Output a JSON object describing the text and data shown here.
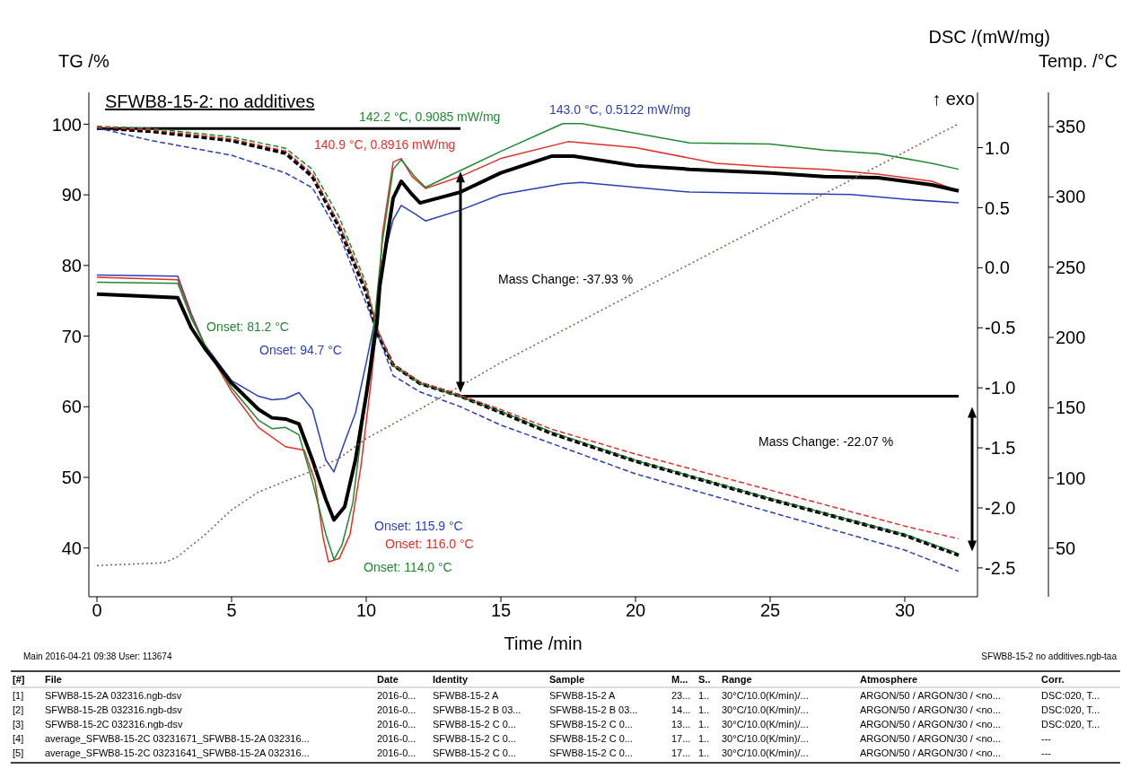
{
  "chart_data": {
    "type": "line",
    "title": "SFWB8-15-2: no additives",
    "xlabel": "Time /min",
    "ylabel": "TG /%",
    "y2label": "DSC /(mW/mg)",
    "y3label": "Temp. /°C",
    "xlim": [
      -0.3,
      32.7
    ],
    "xticks": [
      0,
      5,
      10,
      15,
      20,
      25,
      30
    ],
    "ylim": [
      33.1,
      104.5
    ],
    "yticks": [
      40,
      50,
      60,
      70,
      80,
      90,
      100
    ],
    "y2lim": [
      -2.74,
      1.46
    ],
    "y2ticks": [
      {
        "value": -2.5,
        "label": "-2.5"
      },
      {
        "value": -2,
        "label": "-2.0"
      },
      {
        "value": -1.5,
        "label": "-1.5"
      },
      {
        "value": -1,
        "label": "-1.0"
      },
      {
        "value": -0.5,
        "label": "-0.5"
      },
      {
        "value": 0,
        "label": "0.0"
      },
      {
        "value": 0.5,
        "label": "0.5"
      },
      {
        "value": 1,
        "label": "1.0"
      }
    ],
    "y3lim": [
      15.5,
      374.3
    ],
    "y3ticks": [
      50,
      100,
      150,
      200,
      250,
      300,
      350
    ],
    "marker": "none",
    "series": [
      {
        "axis": "y",
        "color": "#000000",
        "line_style": "dashed",
        "x": [
          0,
          2,
          5,
          7,
          8,
          9,
          10,
          10.4,
          11,
          12,
          13.5,
          15,
          16.9,
          20,
          25,
          30,
          32
        ],
        "values": [
          99.5,
          99.0,
          97.7,
          95.9,
          92.6,
          85.4,
          76.2,
          70.5,
          65.9,
          63.3,
          61.5,
          59.2,
          56.2,
          52.3,
          46.9,
          41.8,
          39.0
        ]
      },
      {
        "axis": "y",
        "color": "#2b3fb5",
        "line_style": "dashed",
        "x": [
          0,
          2,
          5,
          7,
          8,
          9,
          10,
          11,
          12,
          13.5,
          15,
          20,
          25,
          30,
          32
        ],
        "values": [
          99.5,
          97.7,
          95.6,
          93.1,
          91.0,
          84.4,
          74.6,
          64.4,
          62.1,
          60.0,
          57.4,
          50.5,
          45.1,
          39.7,
          36.7
        ]
      },
      {
        "axis": "y",
        "color": "#1e8a2e",
        "line_style": "dashed",
        "x": [
          0,
          2,
          5,
          7,
          8,
          9,
          10,
          10.4,
          11,
          12,
          13.5,
          15,
          16.9,
          20,
          25,
          30,
          32
        ],
        "values": [
          99.7,
          99.4,
          98.2,
          96.6,
          93.6,
          86.8,
          77.4,
          71.2,
          65.8,
          63.3,
          61.4,
          59.3,
          56.4,
          52.4,
          47.0,
          41.9,
          39.2
        ]
      },
      {
        "axis": "y",
        "color": "#e0302a",
        "line_style": "dashed",
        "x": [
          0,
          2,
          5,
          7,
          8,
          9,
          10,
          10.4,
          11,
          12,
          13.5,
          15,
          16.9,
          20,
          25,
          30,
          32
        ],
        "values": [
          99.6,
          99.2,
          97.9,
          96.2,
          93.0,
          85.8,
          76.8,
          71.0,
          66.0,
          63.5,
          61.6,
          59.6,
          56.8,
          53.3,
          48.2,
          43.1,
          41.3
        ]
      },
      {
        "axis": "y2",
        "color": "#2b3fb5",
        "line_style": "solid",
        "x": [
          0,
          3,
          3.5,
          4,
          5,
          6,
          6.5,
          7,
          7.5,
          8,
          8.5,
          8.8,
          9.2,
          9.6,
          10,
          10.3,
          10.6,
          11,
          11.3,
          11.8,
          12.2,
          13.5,
          15,
          17.3,
          18,
          20,
          22,
          25,
          28,
          30,
          32
        ],
        "values": [
          -0.06,
          -0.07,
          -0.38,
          -0.64,
          -0.94,
          -1.07,
          -1.1,
          -1.09,
          -1.04,
          -1.18,
          -1.6,
          -1.7,
          -1.45,
          -1.21,
          -0.79,
          -0.46,
          0.04,
          0.4,
          0.52,
          0.45,
          0.39,
          0.48,
          0.61,
          0.7,
          0.71,
          0.67,
          0.63,
          0.62,
          0.61,
          0.57,
          0.54
        ]
      },
      {
        "axis": "y2",
        "color": "#e0302a",
        "line_style": "solid",
        "x": [
          0,
          3,
          3.5,
          4,
          5,
          6,
          7,
          7.7,
          8.1,
          8.4,
          8.6,
          9.0,
          9.4,
          9.8,
          10.2,
          10.4,
          10.6,
          11,
          11.3,
          11.7,
          12.2,
          13.5,
          15,
          17.5,
          20,
          23,
          25,
          27,
          29,
          31,
          32
        ],
        "values": [
          -0.08,
          -0.1,
          -0.4,
          -0.64,
          -1.03,
          -1.33,
          -1.49,
          -1.52,
          -1.78,
          -2.25,
          -2.45,
          -2.42,
          -2.22,
          -1.66,
          -0.91,
          -0.46,
          0.28,
          0.88,
          0.91,
          0.76,
          0.66,
          0.76,
          0.91,
          1.05,
          1.0,
          0.87,
          0.84,
          0.82,
          0.78,
          0.72,
          0.64
        ]
      },
      {
        "axis": "y2",
        "color": "#1e8a2e",
        "line_style": "solid",
        "x": [
          0,
          3,
          3.5,
          4,
          5,
          6,
          6.5,
          7,
          7.5,
          8,
          8.5,
          8.8,
          9.1,
          9.5,
          10,
          10.3,
          10.6,
          11,
          11.3,
          11.8,
          12.2,
          13.5,
          15,
          17.3,
          18,
          20,
          22,
          25,
          27,
          29,
          31,
          32
        ],
        "values": [
          -0.12,
          -0.13,
          -0.42,
          -0.64,
          -1.0,
          -1.27,
          -1.34,
          -1.33,
          -1.39,
          -1.78,
          -2.22,
          -2.43,
          -2.31,
          -1.96,
          -1.06,
          -0.46,
          0.22,
          0.82,
          0.9,
          0.76,
          0.67,
          0.81,
          0.97,
          1.2,
          1.2,
          1.12,
          1.04,
          1.03,
          0.98,
          0.95,
          0.87,
          0.82
        ]
      },
      {
        "axis": "y2",
        "color": "#000000",
        "line_style": "solid",
        "x": [
          0,
          3,
          3.5,
          4,
          5,
          6,
          6.5,
          7,
          7.5,
          8,
          8.5,
          8.8,
          9.2,
          9.6,
          10,
          10.4,
          10.5,
          11,
          11.3,
          11.7,
          12,
          13,
          13.5,
          15,
          16.9,
          17.7,
          20,
          22,
          25,
          27,
          29,
          31,
          32
        ],
        "values": [
          -0.22,
          -0.25,
          -0.5,
          -0.67,
          -0.96,
          -1.18,
          -1.25,
          -1.26,
          -1.3,
          -1.6,
          -1.93,
          -2.1,
          -1.99,
          -1.6,
          -1.06,
          -0.46,
          -0.16,
          0.58,
          0.72,
          0.61,
          0.54,
          0.6,
          0.63,
          0.79,
          0.93,
          0.93,
          0.85,
          0.82,
          0.79,
          0.76,
          0.75,
          0.69,
          0.64
        ]
      },
      {
        "axis": "y3",
        "color": "#8b5a3c",
        "line_style": "dotted",
        "x": [
          0,
          2.5,
          3,
          4,
          5,
          6,
          7,
          8,
          9,
          10,
          12,
          15,
          20,
          25,
          30,
          32
        ],
        "values": [
          37.7,
          39.7,
          44,
          59.4,
          77.3,
          90,
          97.7,
          105,
          114,
          128,
          149,
          182,
          232,
          282,
          332,
          352
        ]
      }
    ],
    "ref_lines": [
      {
        "axis": "y",
        "value": 99.4,
        "color": "#000000"
      },
      {
        "axis": "y",
        "value": 61.5,
        "color": "#000000"
      }
    ],
    "annotations": [
      "↑ exo",
      "142.2 °C, 0.9085 mW/mg",
      "140.9 °C, 0.8916 mW/mg",
      "143.0 °C, 0.5122 mW/mg",
      "Mass Change: -37.93 %",
      "Onset: 81.2 °C",
      "Onset: 94.7 °C",
      "Mass Change: -22.07 %",
      "Onset: 115.9 °C",
      "Onset: 116.0 °C",
      "Onset: 114.0 °C",
      "Main   2016-04-21 09:38   User: 113674",
      "SFWB8-15-2 no additives.ngb-taa",
      "[#]\tFile\tDate\tIdentity\tSample\tM...\tS..\tRange\tAtmosphere\tCorr.",
      "[1]\tSFWB8-15-2A 032316.ngb-dsv\t2016-0...\tSFWB8-15-2 A\tSFWB8-15-2 A\t23...\t1..\t30°C/10.0(K/min)/...\tARGON/50 / ARGON/30 / <no...\tDSC:020, T...",
      "[2]\tSFWB8-15-2B 032316.ngb-dsv\t2016-0...\tSFWB8-15-2 B 03...\tSFWB8-15-2 B 03...\t14...\t1..\t30°C/10.0(K/min)/...\tARGON/50 / ARGON/30 / <no...\tDSC:020, T...",
      "[3]\tSFWB8-15-2C 032316.ngb-dsv\t2016-0...\tSFWB8-15-2 C 0...\tSFWB8-15-2 C 0...\t13...\t1..\t30°C/10.0(K/min)/...\tARGON/50 / ARGON/30 / <no...\tDSC:020, T...",
      "[4]\taverage_SFWB8-15-2C 03231671_SFWB8-15-2A 032316...\t2016-0...\tSFWB8-15-2 C 0...\tSFWB8-15-2 C 0...\t17...\t1..\t30°C/10.0(K/min)/...\tARGON/50 / ARGON/30 / <no...\t---",
      "[5]\taverage_SFWB8-15-2C 03231641_SFWB8-15-2A 032316...\t2016-0...\tSFWB8-15-2 C 0...\tSFWB8-15-2 C 0...\t17...\t1..\t30°C/10.0(K/min)/...\tARGON/50 / ARGON/30 / <no...\t---"
    ]
  }
}
